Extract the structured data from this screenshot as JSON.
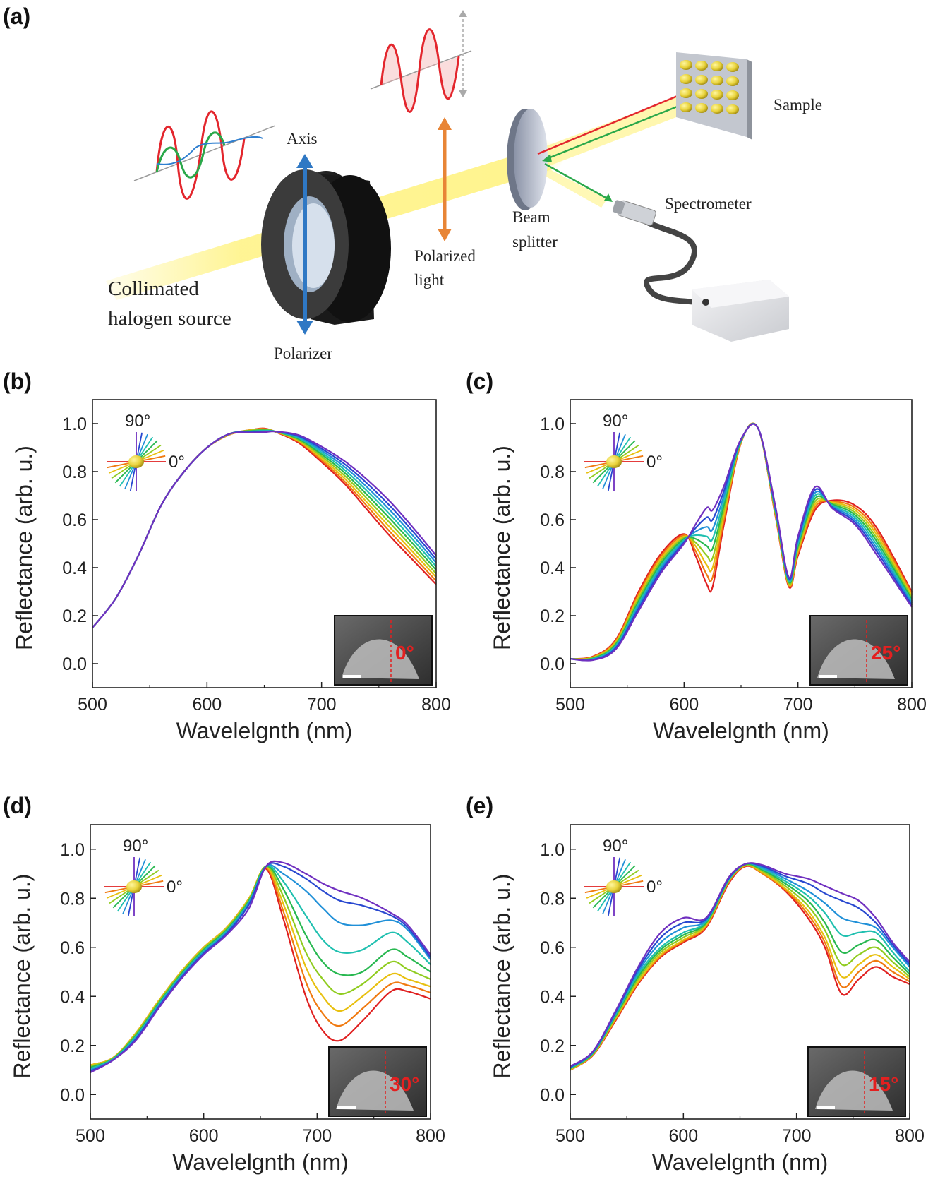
{
  "panel_labels": [
    "(a)",
    "(b)",
    "(c)",
    "(d)",
    "(e)"
  ],
  "schematic": {
    "labels": {
      "axis": "Axis",
      "polarizer": "Polarizer",
      "source_line1": "Collimated",
      "source_line2": "halogen source",
      "polarized_line1": "Polarized",
      "polarized_line2": "light",
      "beam_line1": "Beam",
      "beam_line2": "splitter",
      "sample": "Sample",
      "spectrometer": "Spectrometer"
    },
    "colors": {
      "beam": "#fff27a",
      "wave_red": "#e3262d",
      "wave_green": "#2aa84a",
      "wave_blue": "#2f7fd0",
      "axis_arrow": "#2f78c4",
      "pol_arrow": "#e88536",
      "nanoparticle": "#e8d23a"
    }
  },
  "inset": {
    "label_90": "90°",
    "label_0": "0°"
  },
  "chart_data": [
    {
      "panel": "(b)",
      "type": "line",
      "xlabel": "Wavelelgnth (nm)",
      "ylabel": "Reflectance (arb. u.)",
      "xlim": [
        500,
        800
      ],
      "ylim": [
        -0.1,
        1.1
      ],
      "xticks": [
        500,
        600,
        700,
        800
      ],
      "yticks": [
        0.0,
        0.2,
        0.4,
        0.6,
        0.8,
        1.0
      ],
      "sem_angle_label": "0°",
      "series_order": "red (0°) to violet (90°)",
      "x": [
        500,
        520,
        540,
        560,
        580,
        600,
        620,
        640,
        650,
        660,
        680,
        700,
        720,
        740,
        760,
        780,
        800
      ],
      "series": [
        {
          "color": "#e02020",
          "values": [
            0.15,
            0.27,
            0.45,
            0.66,
            0.8,
            0.9,
            0.955,
            0.975,
            0.98,
            0.965,
            0.92,
            0.84,
            0.75,
            0.64,
            0.53,
            0.43,
            0.33
          ]
        },
        {
          "color": "#f07a10",
          "values": [
            0.15,
            0.27,
            0.45,
            0.66,
            0.8,
            0.9,
            0.955,
            0.975,
            0.978,
            0.966,
            0.925,
            0.848,
            0.76,
            0.655,
            0.548,
            0.447,
            0.345
          ]
        },
        {
          "color": "#e8c010",
          "values": [
            0.15,
            0.27,
            0.45,
            0.66,
            0.8,
            0.9,
            0.956,
            0.974,
            0.976,
            0.966,
            0.928,
            0.856,
            0.772,
            0.67,
            0.566,
            0.464,
            0.36
          ]
        },
        {
          "color": "#90cc20",
          "values": [
            0.15,
            0.27,
            0.45,
            0.66,
            0.8,
            0.9,
            0.957,
            0.972,
            0.974,
            0.967,
            0.932,
            0.864,
            0.784,
            0.686,
            0.584,
            0.481,
            0.375
          ]
        },
        {
          "color": "#28b850",
          "values": [
            0.15,
            0.27,
            0.45,
            0.66,
            0.8,
            0.9,
            0.958,
            0.97,
            0.972,
            0.967,
            0.936,
            0.872,
            0.796,
            0.702,
            0.602,
            0.498,
            0.39
          ]
        },
        {
          "color": "#20c0b0",
          "values": [
            0.15,
            0.27,
            0.45,
            0.66,
            0.8,
            0.9,
            0.958,
            0.968,
            0.97,
            0.967,
            0.94,
            0.88,
            0.808,
            0.718,
            0.62,
            0.515,
            0.405
          ]
        },
        {
          "color": "#2090d8",
          "values": [
            0.15,
            0.27,
            0.45,
            0.66,
            0.8,
            0.9,
            0.958,
            0.966,
            0.968,
            0.967,
            0.944,
            0.888,
            0.82,
            0.734,
            0.638,
            0.532,
            0.42
          ]
        },
        {
          "color": "#2848d0",
          "values": [
            0.15,
            0.27,
            0.45,
            0.66,
            0.8,
            0.9,
            0.958,
            0.964,
            0.966,
            0.967,
            0.948,
            0.896,
            0.832,
            0.75,
            0.656,
            0.549,
            0.435
          ]
        },
        {
          "color": "#7030c0",
          "values": [
            0.15,
            0.27,
            0.45,
            0.66,
            0.8,
            0.9,
            0.958,
            0.962,
            0.964,
            0.967,
            0.952,
            0.904,
            0.844,
            0.766,
            0.674,
            0.566,
            0.45
          ]
        }
      ]
    },
    {
      "panel": "(c)",
      "type": "line",
      "xlabel": "Wavelelgnth (nm)",
      "ylabel": "Reflectance (arb. u.)",
      "xlim": [
        500,
        800
      ],
      "ylim": [
        -0.1,
        1.1
      ],
      "xticks": [
        500,
        600,
        700,
        800
      ],
      "yticks": [
        0.0,
        0.2,
        0.4,
        0.6,
        0.8,
        1.0
      ],
      "sem_angle_label": "25°",
      "series_order": "red (0°) to violet (90°)",
      "x": [
        500,
        520,
        540,
        560,
        580,
        600,
        610,
        620,
        625,
        635,
        650,
        665,
        680,
        692,
        700,
        715,
        730,
        750,
        770,
        800
      ],
      "series": [
        {
          "color": "#e02020",
          "values": [
            0.02,
            0.03,
            0.1,
            0.3,
            0.46,
            0.54,
            0.45,
            0.33,
            0.32,
            0.58,
            0.92,
            0.98,
            0.62,
            0.32,
            0.45,
            0.64,
            0.68,
            0.66,
            0.56,
            0.3
          ]
        },
        {
          "color": "#f07a10",
          "values": [
            0.02,
            0.028,
            0.095,
            0.29,
            0.45,
            0.535,
            0.47,
            0.37,
            0.36,
            0.6,
            0.922,
            0.98,
            0.625,
            0.325,
            0.46,
            0.652,
            0.676,
            0.65,
            0.546,
            0.292
          ]
        },
        {
          "color": "#e8c010",
          "values": [
            0.02,
            0.026,
            0.09,
            0.28,
            0.44,
            0.53,
            0.49,
            0.41,
            0.4,
            0.62,
            0.924,
            0.98,
            0.63,
            0.33,
            0.47,
            0.664,
            0.672,
            0.64,
            0.532,
            0.284
          ]
        },
        {
          "color": "#90cc20",
          "values": [
            0.02,
            0.024,
            0.085,
            0.27,
            0.43,
            0.525,
            0.505,
            0.45,
            0.44,
            0.64,
            0.926,
            0.98,
            0.635,
            0.335,
            0.48,
            0.676,
            0.668,
            0.63,
            0.518,
            0.276
          ]
        },
        {
          "color": "#28b850",
          "values": [
            0.02,
            0.022,
            0.08,
            0.26,
            0.42,
            0.52,
            0.52,
            0.49,
            0.48,
            0.66,
            0.928,
            0.98,
            0.64,
            0.34,
            0.49,
            0.688,
            0.664,
            0.62,
            0.504,
            0.268
          ]
        },
        {
          "color": "#20c0b0",
          "values": [
            0.02,
            0.02,
            0.075,
            0.25,
            0.41,
            0.515,
            0.535,
            0.53,
            0.52,
            0.68,
            0.93,
            0.98,
            0.645,
            0.345,
            0.5,
            0.7,
            0.66,
            0.61,
            0.49,
            0.26
          ]
        },
        {
          "color": "#2090d8",
          "values": [
            0.02,
            0.018,
            0.07,
            0.24,
            0.4,
            0.51,
            0.55,
            0.57,
            0.56,
            0.7,
            0.932,
            0.98,
            0.65,
            0.35,
            0.51,
            0.712,
            0.656,
            0.6,
            0.476,
            0.252
          ]
        },
        {
          "color": "#2848d0",
          "values": [
            0.02,
            0.016,
            0.065,
            0.23,
            0.39,
            0.505,
            0.565,
            0.61,
            0.6,
            0.72,
            0.934,
            0.98,
            0.655,
            0.355,
            0.52,
            0.724,
            0.652,
            0.59,
            0.462,
            0.244
          ]
        },
        {
          "color": "#7030c0",
          "values": [
            0.02,
            0.015,
            0.06,
            0.22,
            0.38,
            0.5,
            0.58,
            0.65,
            0.64,
            0.74,
            0.936,
            0.98,
            0.66,
            0.36,
            0.53,
            0.736,
            0.648,
            0.58,
            0.448,
            0.236
          ]
        }
      ]
    },
    {
      "panel": "(d)",
      "type": "line",
      "xlabel": "Wavelelgnth (nm)",
      "ylabel": "Reflectance (arb. u.)",
      "xlim": [
        500,
        800
      ],
      "ylim": [
        -0.1,
        1.1
      ],
      "xticks": [
        500,
        600,
        700,
        800
      ],
      "yticks": [
        0.0,
        0.2,
        0.4,
        0.6,
        0.8,
        1.0
      ],
      "sem_angle_label": "30°",
      "series_order": "red (0°) to violet (90°)",
      "x": [
        500,
        520,
        540,
        560,
        580,
        600,
        620,
        640,
        655,
        670,
        690,
        705,
        720,
        740,
        765,
        780,
        800
      ],
      "series": [
        {
          "color": "#e02020",
          "values": [
            0.12,
            0.15,
            0.25,
            0.38,
            0.5,
            0.6,
            0.68,
            0.8,
            0.92,
            0.72,
            0.4,
            0.26,
            0.22,
            0.3,
            0.42,
            0.42,
            0.39
          ]
        },
        {
          "color": "#f07a10",
          "values": [
            0.12,
            0.15,
            0.25,
            0.38,
            0.5,
            0.6,
            0.68,
            0.8,
            0.925,
            0.75,
            0.46,
            0.33,
            0.28,
            0.35,
            0.45,
            0.445,
            0.415
          ]
        },
        {
          "color": "#e8c010",
          "values": [
            0.12,
            0.15,
            0.25,
            0.38,
            0.5,
            0.6,
            0.68,
            0.8,
            0.928,
            0.78,
            0.52,
            0.4,
            0.34,
            0.4,
            0.49,
            0.47,
            0.44
          ]
        },
        {
          "color": "#90cc20",
          "values": [
            0.115,
            0.148,
            0.245,
            0.375,
            0.495,
            0.595,
            0.675,
            0.795,
            0.93,
            0.81,
            0.58,
            0.47,
            0.41,
            0.45,
            0.54,
            0.51,
            0.47
          ]
        },
        {
          "color": "#28b850",
          "values": [
            0.11,
            0.146,
            0.24,
            0.37,
            0.49,
            0.59,
            0.67,
            0.79,
            0.93,
            0.84,
            0.65,
            0.54,
            0.49,
            0.5,
            0.59,
            0.56,
            0.5
          ]
        },
        {
          "color": "#20c0b0",
          "values": [
            0.105,
            0.144,
            0.235,
            0.365,
            0.485,
            0.585,
            0.665,
            0.785,
            0.93,
            0.87,
            0.73,
            0.63,
            0.58,
            0.59,
            0.66,
            0.62,
            0.53
          ]
        },
        {
          "color": "#2090d8",
          "values": [
            0.1,
            0.142,
            0.23,
            0.36,
            0.48,
            0.58,
            0.66,
            0.78,
            0.93,
            0.9,
            0.83,
            0.76,
            0.7,
            0.69,
            0.71,
            0.67,
            0.55
          ]
        },
        {
          "color": "#2848d0",
          "values": [
            0.095,
            0.14,
            0.225,
            0.355,
            0.475,
            0.575,
            0.655,
            0.775,
            0.93,
            0.93,
            0.88,
            0.83,
            0.79,
            0.77,
            0.73,
            0.68,
            0.56
          ]
        },
        {
          "color": "#7030c0",
          "values": [
            0.09,
            0.14,
            0.22,
            0.35,
            0.47,
            0.57,
            0.65,
            0.76,
            0.93,
            0.945,
            0.9,
            0.86,
            0.83,
            0.8,
            0.74,
            0.69,
            0.57
          ]
        }
      ]
    },
    {
      "panel": "(e)",
      "type": "line",
      "xlabel": "Wavelelgnth (nm)",
      "ylabel": "Reflectance (arb. u.)",
      "xlim": [
        500,
        800
      ],
      "ylim": [
        -0.1,
        1.1
      ],
      "xticks": [
        500,
        600,
        700,
        800
      ],
      "yticks": [
        0.0,
        0.2,
        0.4,
        0.6,
        0.8,
        1.0
      ],
      "sem_angle_label": "15°",
      "series_order": "red (0°) to violet (90°)",
      "x": [
        500,
        520,
        540,
        560,
        580,
        600,
        620,
        640,
        655,
        670,
        690,
        710,
        725,
        740,
        755,
        770,
        785,
        800
      ],
      "series": [
        {
          "color": "#e02020",
          "values": [
            0.1,
            0.16,
            0.3,
            0.45,
            0.56,
            0.62,
            0.68,
            0.86,
            0.93,
            0.9,
            0.83,
            0.72,
            0.6,
            0.41,
            0.47,
            0.52,
            0.48,
            0.45
          ]
        },
        {
          "color": "#f07a10",
          "values": [
            0.1,
            0.162,
            0.305,
            0.455,
            0.565,
            0.625,
            0.685,
            0.865,
            0.932,
            0.9,
            0.835,
            0.735,
            0.62,
            0.44,
            0.5,
            0.545,
            0.5,
            0.46
          ]
        },
        {
          "color": "#e8c010",
          "values": [
            0.102,
            0.164,
            0.31,
            0.46,
            0.57,
            0.63,
            0.69,
            0.87,
            0.934,
            0.905,
            0.84,
            0.75,
            0.64,
            0.48,
            0.53,
            0.57,
            0.52,
            0.47
          ]
        },
        {
          "color": "#90cc20",
          "values": [
            0.104,
            0.166,
            0.315,
            0.47,
            0.58,
            0.64,
            0.695,
            0.87,
            0.936,
            0.91,
            0.85,
            0.77,
            0.67,
            0.53,
            0.57,
            0.6,
            0.54,
            0.48
          ]
        },
        {
          "color": "#28b850",
          "values": [
            0.106,
            0.168,
            0.32,
            0.48,
            0.59,
            0.65,
            0.7,
            0.875,
            0.938,
            0.915,
            0.86,
            0.79,
            0.7,
            0.58,
            0.61,
            0.63,
            0.56,
            0.49
          ]
        },
        {
          "color": "#20c0b0",
          "values": [
            0.108,
            0.17,
            0.325,
            0.49,
            0.6,
            0.66,
            0.705,
            0.875,
            0.94,
            0.92,
            0.87,
            0.81,
            0.74,
            0.65,
            0.66,
            0.66,
            0.58,
            0.5
          ]
        },
        {
          "color": "#2090d8",
          "values": [
            0.11,
            0.172,
            0.33,
            0.5,
            0.62,
            0.68,
            0.71,
            0.88,
            0.94,
            0.925,
            0.88,
            0.83,
            0.78,
            0.72,
            0.7,
            0.68,
            0.6,
            0.52
          ]
        },
        {
          "color": "#2848d0",
          "values": [
            0.112,
            0.174,
            0.335,
            0.51,
            0.64,
            0.7,
            0.715,
            0.88,
            0.94,
            0.93,
            0.89,
            0.86,
            0.82,
            0.79,
            0.76,
            0.7,
            0.61,
            0.53
          ]
        },
        {
          "color": "#7030c0",
          "values": [
            0.115,
            0.176,
            0.34,
            0.52,
            0.66,
            0.72,
            0.72,
            0.885,
            0.94,
            0.935,
            0.9,
            0.88,
            0.85,
            0.82,
            0.79,
            0.72,
            0.62,
            0.54
          ]
        }
      ]
    }
  ]
}
